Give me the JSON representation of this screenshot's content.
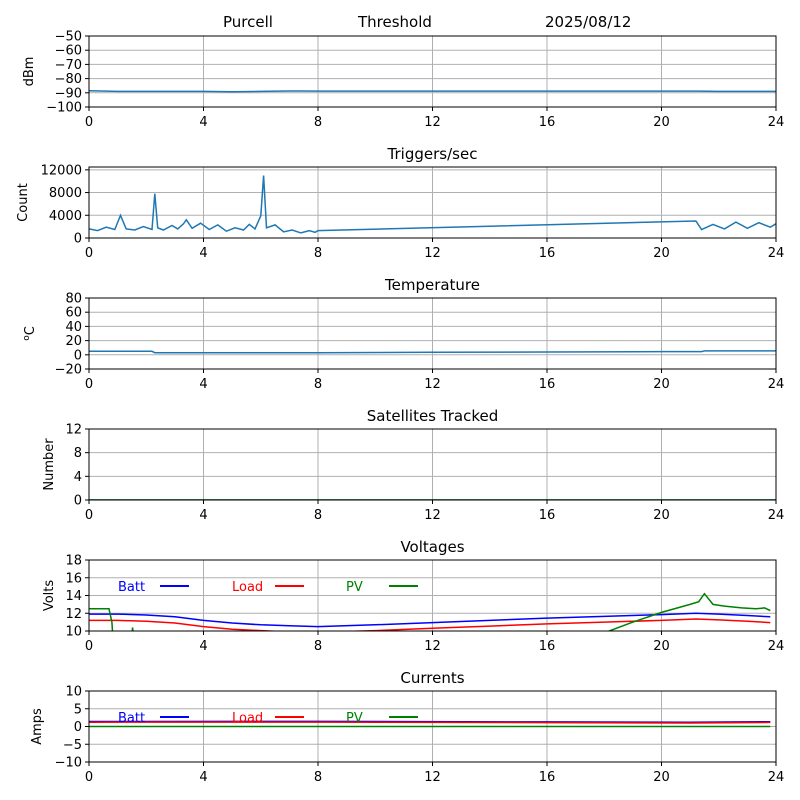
{
  "header": {
    "station": "Purcell",
    "mode": "Threshold",
    "date": "2025/08/12"
  },
  "chart_data": [
    {
      "type": "line",
      "title": "",
      "ylabel": "dBm",
      "xlim": [
        0,
        24
      ],
      "ylim": [
        -100,
        -50
      ],
      "xticks": [
        0,
        4,
        8,
        12,
        16,
        20,
        24
      ],
      "yticks": [
        -100,
        -90,
        -80,
        -70,
        -60,
        -50
      ],
      "grid": true,
      "series": [
        {
          "color": "#1f77b4",
          "x": [
            0,
            1,
            2,
            3,
            4,
            5,
            6,
            7,
            7.4,
            8,
            10,
            12,
            14,
            16,
            18,
            20,
            21.2,
            22,
            23,
            24
          ],
          "y": [
            -88.5,
            -89,
            -89,
            -89,
            -89,
            -89.2,
            -89,
            -88.7,
            -88.7,
            -88.8,
            -88.8,
            -88.8,
            -88.8,
            -88.8,
            -88.8,
            -88.8,
            -88.8,
            -89,
            -89,
            -89
          ]
        }
      ]
    },
    {
      "type": "line",
      "title": "Triggers/sec",
      "ylabel": "Count",
      "xlim": [
        0,
        24
      ],
      "ylim": [
        0,
        12500
      ],
      "xticks": [
        0,
        4,
        8,
        12,
        16,
        20,
        24
      ],
      "yticks": [
        0,
        4000,
        8000,
        12000
      ],
      "grid": true,
      "series": [
        {
          "color": "#1f77b4",
          "x": [
            0,
            0.3,
            0.6,
            0.9,
            1.1,
            1.3,
            1.6,
            1.9,
            2.2,
            2.3,
            2.4,
            2.6,
            2.9,
            3.1,
            3.3,
            3.4,
            3.6,
            3.9,
            4.2,
            4.5,
            4.8,
            5.1,
            5.4,
            5.6,
            5.8,
            6.0,
            6.1,
            6.2,
            6.5,
            6.8,
            7.1,
            7.4,
            7.7,
            7.9,
            8.0,
            21.2,
            21.4,
            21.8,
            22.2,
            22.6,
            23.0,
            23.4,
            23.8,
            24
          ],
          "y": [
            1600,
            1300,
            1900,
            1500,
            4000,
            1600,
            1400,
            2000,
            1500,
            7800,
            1800,
            1400,
            2200,
            1600,
            2500,
            3200,
            1700,
            2600,
            1500,
            2300,
            1200,
            1800,
            1400,
            2400,
            1600,
            3900,
            11000,
            1800,
            2300,
            1100,
            1400,
            900,
            1300,
            1000,
            1300,
            3000,
            1500,
            2400,
            1600,
            2800,
            1700,
            2700,
            1900,
            2500
          ]
        }
      ]
    },
    {
      "type": "line",
      "title": "Temperature",
      "ylabel": "oC",
      "xlim": [
        0,
        24
      ],
      "ylim": [
        -20,
        80
      ],
      "xticks": [
        0,
        4,
        8,
        12,
        16,
        20,
        24
      ],
      "yticks": [
        -20,
        0,
        20,
        40,
        60,
        80
      ],
      "grid": true,
      "series": [
        {
          "color": "#1f77b4",
          "x": [
            0,
            2.2,
            2.3,
            8,
            12,
            16,
            20,
            21.4,
            21.5,
            24
          ],
          "y": [
            5,
            5,
            3,
            3,
            3.5,
            4,
            4.5,
            4.5,
            5.5,
            5.5
          ]
        }
      ]
    },
    {
      "type": "line",
      "title": "Satellites Tracked",
      "ylabel": "Number",
      "xlim": [
        0,
        24
      ],
      "ylim": [
        0,
        12
      ],
      "xticks": [
        0,
        4,
        8,
        12,
        16,
        20,
        24
      ],
      "yticks": [
        0,
        4,
        8,
        12
      ],
      "grid": true,
      "series": [
        {
          "color": "#1f77b4",
          "x": [
            0,
            24
          ],
          "y": [
            0,
            0
          ]
        },
        {
          "color": "#008000",
          "x": [
            0,
            24
          ],
          "y": [
            0,
            0
          ]
        }
      ]
    },
    {
      "type": "line",
      "title": "Voltages",
      "ylabel": "Volts",
      "xlim": [
        0,
        24
      ],
      "ylim": [
        10,
        18
      ],
      "xticks": [
        0,
        4,
        8,
        12,
        16,
        20,
        24
      ],
      "yticks": [
        10,
        12,
        14,
        16,
        18
      ],
      "grid": true,
      "legend": "top-left",
      "series": [
        {
          "name": "Batt",
          "color": "#0000ff",
          "x": [
            0,
            1,
            2,
            3,
            4,
            5,
            6,
            7,
            8,
            10,
            12,
            14,
            16,
            18,
            20,
            21.2,
            22,
            23,
            23.8
          ],
          "y": [
            11.9,
            11.9,
            11.8,
            11.6,
            11.2,
            10.9,
            10.7,
            10.6,
            10.5,
            10.7,
            10.95,
            11.2,
            11.45,
            11.65,
            11.85,
            12.0,
            11.9,
            11.75,
            11.6
          ]
        },
        {
          "name": "Load",
          "color": "#ff0000",
          "x": [
            0,
            1,
            2,
            3,
            4,
            5,
            6,
            7,
            8,
            10,
            12,
            14,
            16,
            18,
            20,
            21.2,
            22,
            23,
            23.8
          ],
          "y": [
            11.2,
            11.2,
            11.1,
            10.9,
            10.5,
            10.2,
            10.05,
            9.9,
            9.85,
            10.05,
            10.3,
            10.55,
            10.8,
            11.0,
            11.2,
            11.35,
            11.25,
            11.1,
            10.95
          ]
        },
        {
          "name": "PV",
          "color": "#008000",
          "x": [
            0,
            0.7,
            0.8,
            0.85,
            1.5,
            1.52,
            1.6,
            18,
            19,
            20,
            21,
            21.3,
            21.5,
            21.8,
            22.2,
            22.8,
            23.3,
            23.6,
            23.8
          ],
          "y": [
            12.5,
            12.5,
            11.0,
            8.5,
            8.5,
            10.4,
            8.5,
            9.8,
            11.0,
            12.1,
            13.0,
            13.3,
            14.2,
            13.0,
            12.8,
            12.6,
            12.5,
            12.6,
            12.3
          ]
        }
      ]
    },
    {
      "type": "line",
      "title": "Currents",
      "ylabel": "Amps",
      "xlim": [
        0,
        24
      ],
      "ylim": [
        -10,
        10
      ],
      "xticks": [
        0,
        4,
        8,
        12,
        16,
        20,
        24
      ],
      "yticks": [
        -10,
        -5,
        0,
        5,
        10
      ],
      "grid": true,
      "legend": "top-left",
      "series": [
        {
          "name": "Batt",
          "color": "#0000ff",
          "x": [
            0,
            8,
            16,
            21,
            23.8
          ],
          "y": [
            1.4,
            1.45,
            1.3,
            1.2,
            1.35
          ]
        },
        {
          "name": "Load",
          "color": "#ff0000",
          "x": [
            0,
            8,
            16,
            21,
            23.8
          ],
          "y": [
            1.2,
            1.25,
            1.1,
            1.0,
            1.15
          ]
        },
        {
          "name": "PV",
          "color": "#008000",
          "x": [
            0,
            23.8
          ],
          "y": [
            0,
            0
          ]
        }
      ]
    }
  ]
}
